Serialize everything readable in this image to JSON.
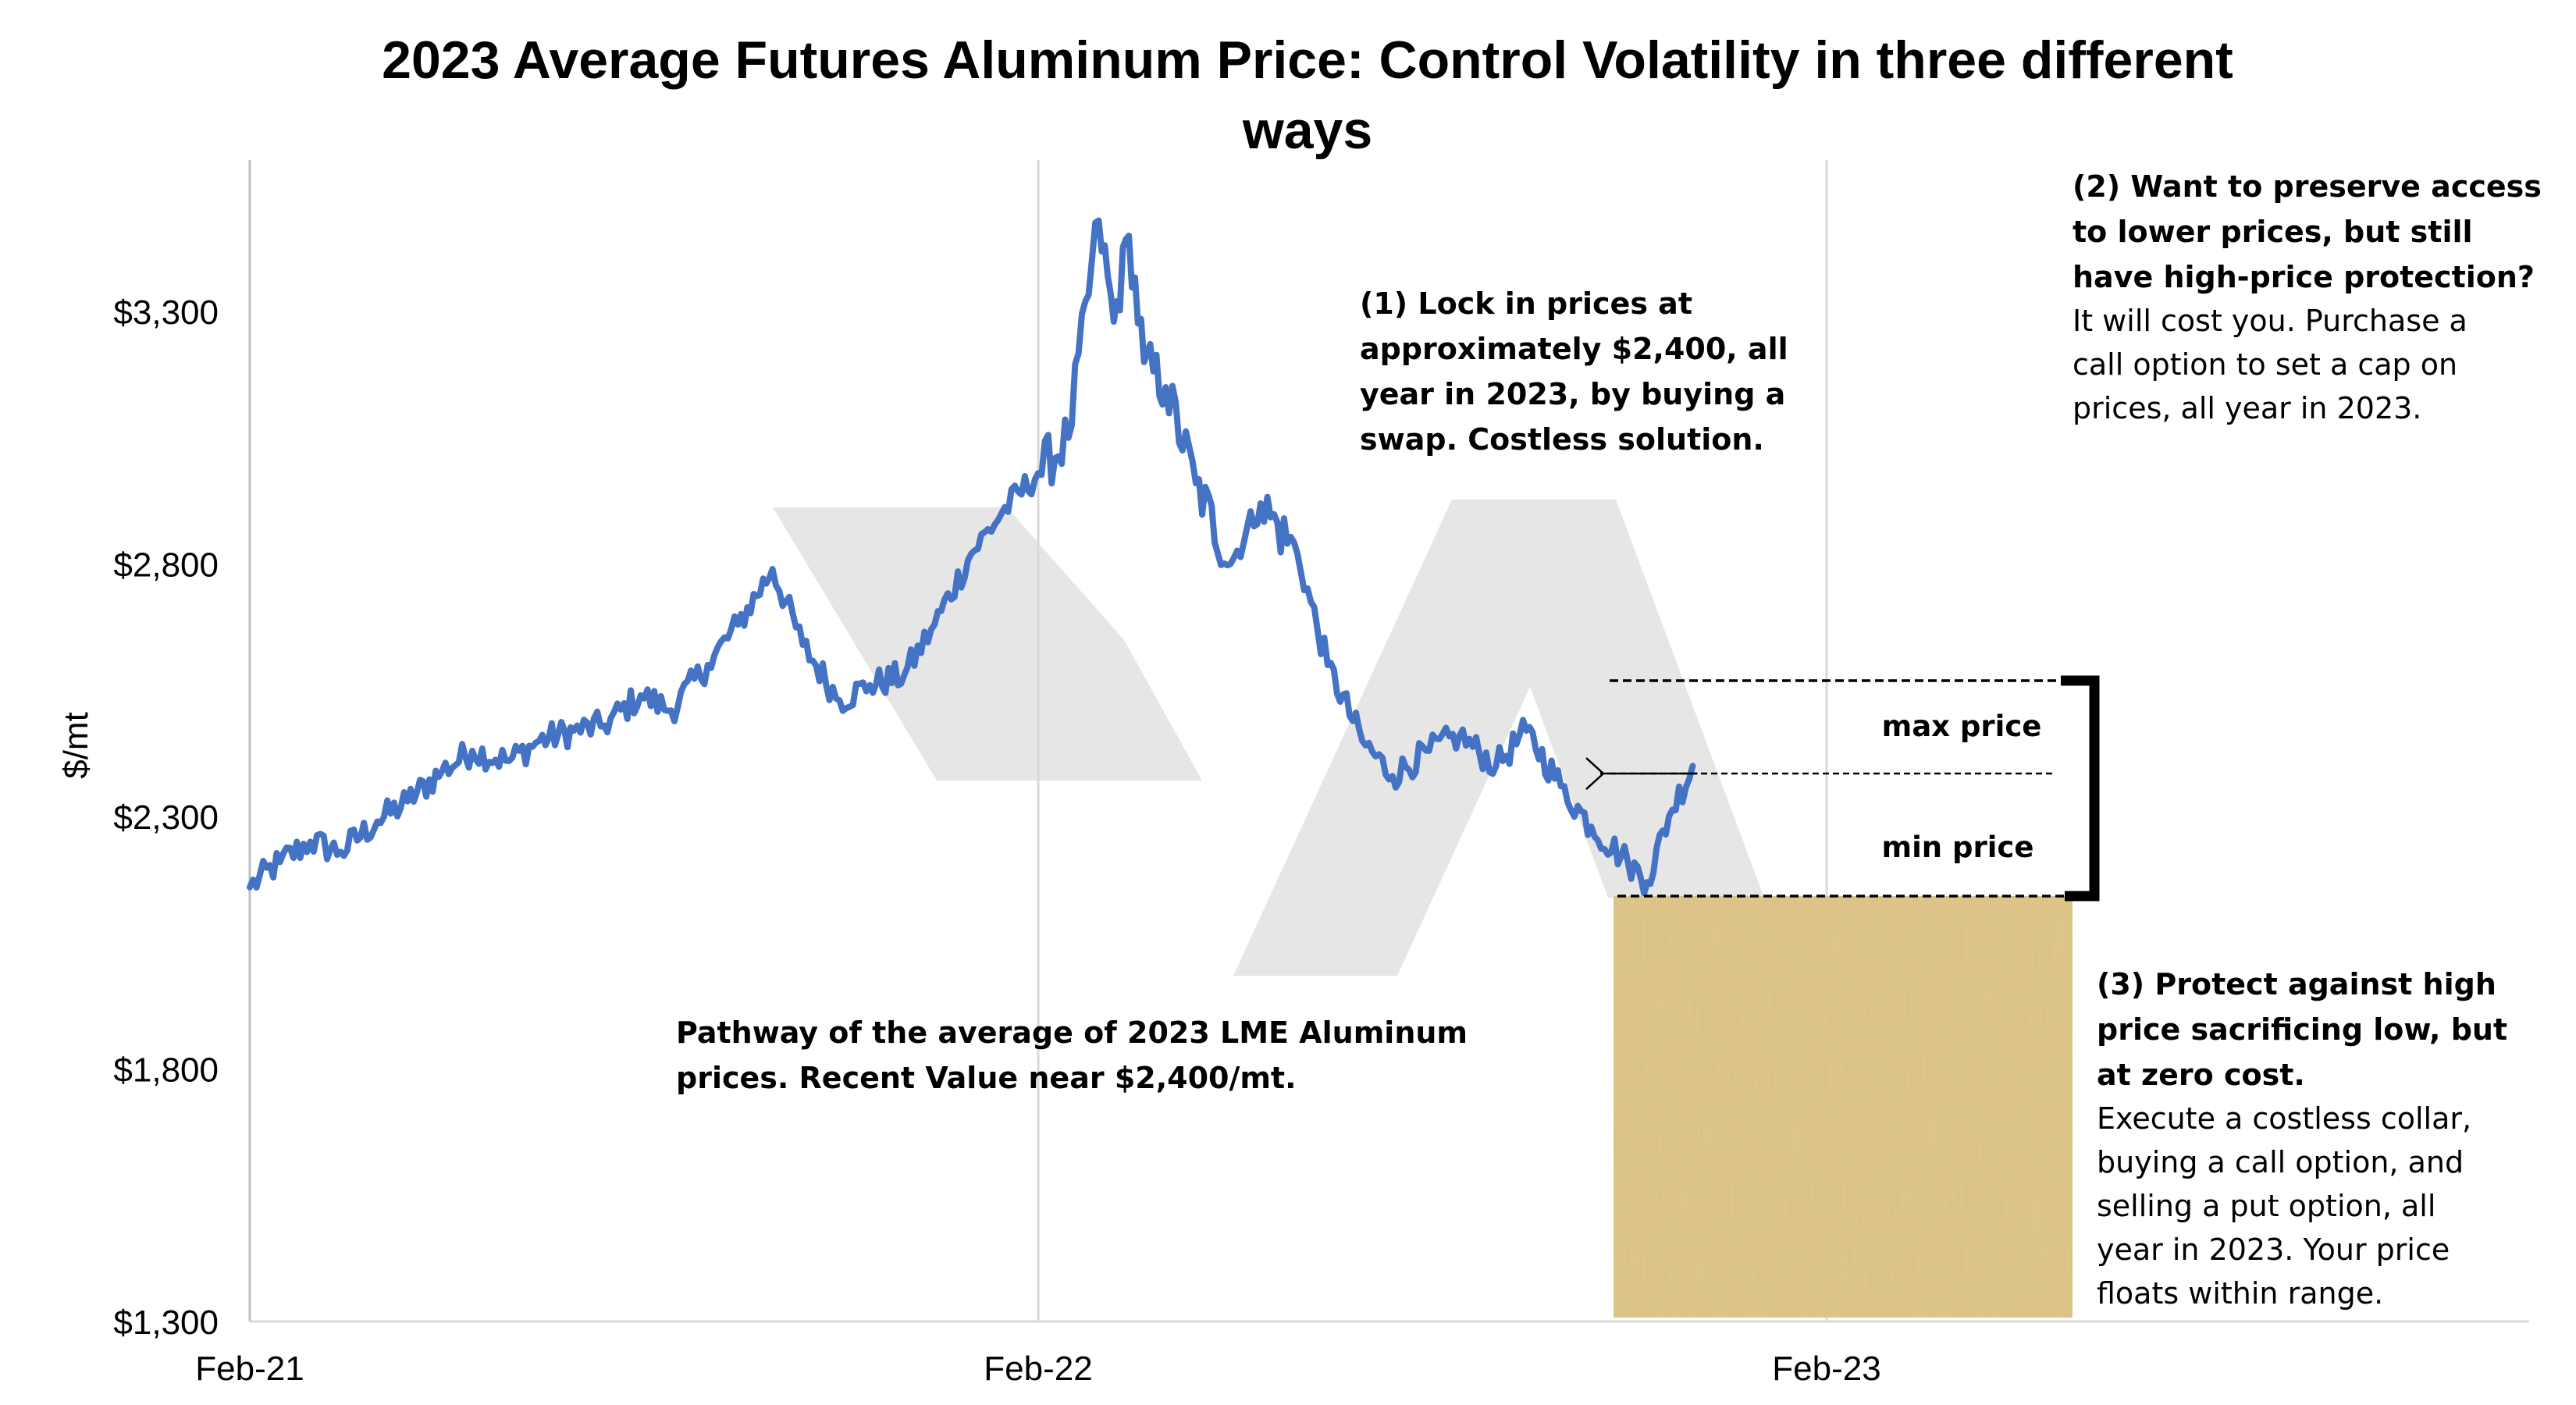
{
  "chart_data": {
    "type": "line",
    "title": "2023 Average Futures Aluminum Price: Control Volatility in three different ways",
    "title_lines": [
      "2023 Average Futures Aluminum Price: Control Volatility in three different",
      "ways"
    ],
    "ylabel": "$/mt",
    "xlabel": "",
    "ylim": [
      1300,
      3600
    ],
    "yticks": [
      1300,
      1800,
      2300,
      2800,
      3300
    ],
    "ytick_labels": [
      "$1,300",
      "$1,800",
      "$2,300",
      "$2,800",
      "$3,300"
    ],
    "x_tick_labels": [
      "Feb-21",
      "Feb-22",
      "Feb-23"
    ],
    "x_tick_dates": [
      "2021-02-01",
      "2022-02-01",
      "2023-02-01"
    ],
    "x_range": [
      "2021-02-01",
      "2023-12-01"
    ],
    "grid": "vertical lines at x ticks",
    "series": [
      {
        "color": "#4472C4",
        "x": [
          "2021-02-01",
          "2021-02-15",
          "2021-03-01",
          "2021-03-15",
          "2021-04-01",
          "2021-04-15",
          "2021-05-01",
          "2021-05-15",
          "2021-06-01",
          "2021-06-15",
          "2021-07-01",
          "2021-07-15",
          "2021-08-01",
          "2021-08-15",
          "2021-09-01",
          "2021-09-15",
          "2021-10-01",
          "2021-10-15",
          "2021-11-01",
          "2021-11-15",
          "2021-12-01",
          "2021-12-15",
          "2022-01-01",
          "2022-01-15",
          "2022-02-01",
          "2022-02-15",
          "2022-03-01",
          "2022-03-08",
          "2022-03-15",
          "2022-03-22",
          "2022-04-01",
          "2022-04-15",
          "2022-05-01",
          "2022-05-15",
          "2022-06-01",
          "2022-06-15",
          "2022-07-01",
          "2022-07-15",
          "2022-08-01",
          "2022-08-15",
          "2022-09-01",
          "2022-09-15",
          "2022-10-01",
          "2022-10-15",
          "2022-11-01",
          "2022-11-10",
          "2022-11-20",
          "2022-12-01"
        ],
        "values": [
          2160,
          2210,
          2250,
          2230,
          2290,
          2330,
          2390,
          2430,
          2410,
          2450,
          2470,
          2480,
          2540,
          2510,
          2600,
          2680,
          2790,
          2640,
          2530,
          2560,
          2580,
          2680,
          2820,
          2900,
          2980,
          3050,
          3480,
          3280,
          3450,
          3200,
          3150,
          2960,
          2800,
          2920,
          2820,
          2600,
          2450,
          2380,
          2430,
          2460,
          2400,
          2470,
          2360,
          2280,
          2210,
          2170,
          2300,
          2400
        ]
      }
    ],
    "annotations": {
      "lock": [
        "(1) Lock in prices at",
        "approximately $2,400, all",
        "year in 2023, by buying a",
        "swap. Costless solution."
      ],
      "call_bold": [
        "(2) Want to preserve access",
        "to lower prices, but still",
        "have high-price protection?"
      ],
      "call_text": [
        "It will cost you. Purchase a",
        "call option to set a cap on",
        "prices, all year in 2023."
      ],
      "pathway": [
        "Pathway of the average of 2023 LME Aluminum",
        "prices.  Recent Value near $2,400/mt."
      ],
      "collar_bold": [
        "(3) Protect against high",
        "price sacrificing low, but",
        "at zero cost."
      ],
      "collar_text": [
        "Execute a costless collar,",
        "buying a call option, and",
        "selling a put option, all",
        "year in 2023.  Your price",
        "floats within range."
      ],
      "max_price": "max price",
      "min_price": "min price"
    },
    "range": {
      "max": 2570,
      "mid": 2385,
      "min": 2150
    }
  },
  "colors": {
    "line": "#4472C4",
    "grid": "#D9D9D9",
    "watermark": "#E6E6E6",
    "papyrus": "#E2C98A"
  }
}
